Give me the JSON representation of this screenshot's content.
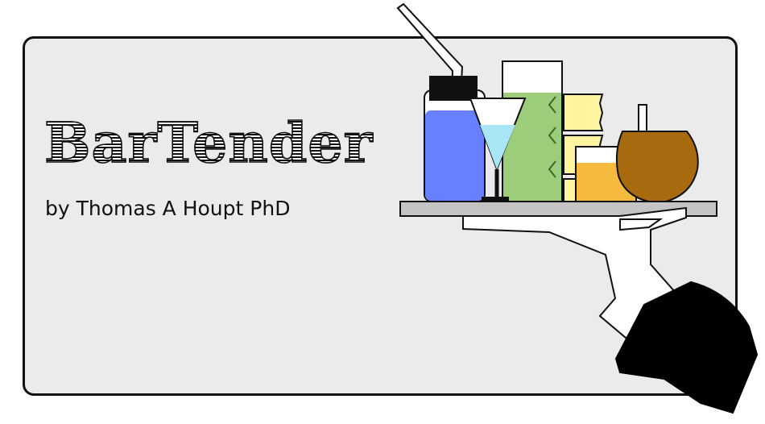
{
  "app": {
    "title": "BarTender",
    "byline": "by Thomas A Houpt PhD"
  },
  "colors": {
    "panel": "#ebebeb",
    "bottle_liquid": "#6680ff",
    "martini_liquid": "#a8e6f5",
    "tall_glass_liquid": "#9ccd7a",
    "cup_stack": "#fff5a0",
    "short_glass": "#f5b52e",
    "brandy_snifter": "#a86a0e",
    "tray": "#c4c4c4",
    "sleeve": "#000000"
  }
}
